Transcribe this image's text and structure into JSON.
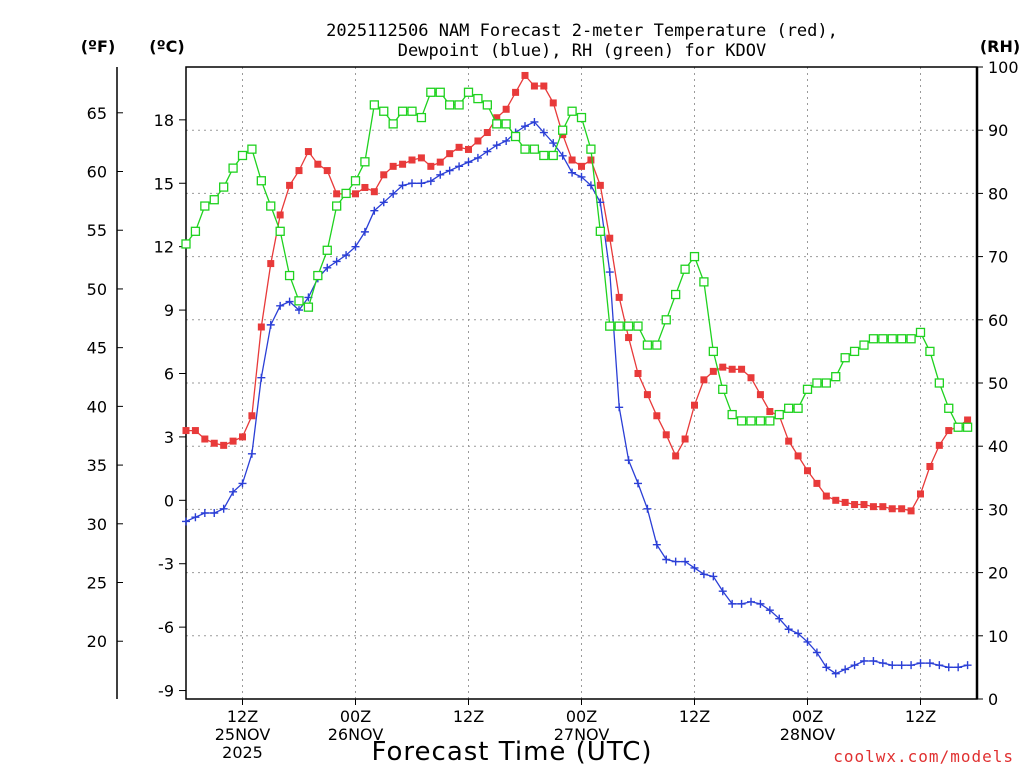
{
  "chart_data": {
    "type": "line",
    "title_line1": "2025112506 NAM Forecast 2-meter Temperature (red),",
    "title_line2": "Dewpoint (blue), RH (green) for KDOV",
    "xlabel": "Forecast Time (UTC)",
    "unit_f": "(ºF)",
    "unit_c": "(ºC)",
    "unit_rh": "(RH)",
    "watermark": "coolwx.com/models",
    "x_range_hours": [
      0,
      84
    ],
    "x_ticks": [
      {
        "h": 6,
        "l1": "12Z",
        "l2": "25NOV",
        "l3": "2025"
      },
      {
        "h": 18,
        "l1": "00Z",
        "l2": "26NOV",
        "l3": ""
      },
      {
        "h": 30,
        "l1": "12Z",
        "l2": "",
        "l3": ""
      },
      {
        "h": 42,
        "l1": "00Z",
        "l2": "27NOV",
        "l3": ""
      },
      {
        "h": 54,
        "l1": "12Z",
        "l2": "",
        "l3": ""
      },
      {
        "h": 66,
        "l1": "00Z",
        "l2": "28NOV",
        "l3": ""
      },
      {
        "h": 78,
        "l1": "12Z",
        "l2": "",
        "l3": ""
      }
    ],
    "c_range": [
      -9.4,
      20.5
    ],
    "c_ticks": [
      -9,
      -6,
      -3,
      0,
      3,
      6,
      9,
      12,
      15,
      18
    ],
    "f_ticks": [
      20,
      25,
      30,
      35,
      40,
      45,
      50,
      55,
      60,
      65
    ],
    "rh_range": [
      0,
      100
    ],
    "rh_ticks": [
      0,
      10,
      20,
      30,
      40,
      50,
      60,
      70,
      80,
      90,
      100
    ],
    "colors": {
      "temperature": "#e83a3a",
      "dewpoint": "#2b3fd6",
      "rh": "#1fd21f",
      "grid": "#9a9a9a"
    },
    "series": [
      {
        "key": "temperature",
        "marker": "filled-square",
        "values": [
          3.3,
          3.3,
          2.9,
          2.7,
          2.6,
          2.8,
          3.0,
          4.0,
          8.2,
          11.2,
          13.5,
          14.9,
          15.6,
          16.5,
          15.9,
          15.6,
          14.5,
          14.5,
          14.5,
          14.8,
          14.6,
          15.4,
          15.8,
          15.9,
          16.1,
          16.2,
          15.8,
          16.0,
          16.4,
          16.7,
          16.6,
          17.0,
          17.4,
          18.1,
          18.5,
          19.3,
          20.1,
          19.6,
          19.6,
          18.8,
          17.3,
          16.1,
          15.8,
          16.1,
          14.9,
          12.4,
          9.6,
          7.7,
          6.0,
          5.0,
          4.0,
          3.1,
          2.1,
          2.9,
          4.5,
          5.7,
          6.1,
          6.3,
          6.2,
          6.2,
          5.8,
          5.0,
          4.2,
          4.0,
          2.8,
          2.1,
          1.4,
          0.8,
          0.2,
          0.0,
          -0.1,
          -0.2,
          -0.2,
          -0.3,
          -0.3,
          -0.4,
          -0.4,
          -0.5,
          0.3,
          1.6,
          2.6,
          3.3,
          3.5,
          3.8
        ]
      },
      {
        "key": "dewpoint",
        "marker": "plus",
        "values": [
          -1.0,
          -0.8,
          -0.6,
          -0.6,
          -0.4,
          0.4,
          0.8,
          2.2,
          5.8,
          8.3,
          9.2,
          9.4,
          9.0,
          9.6,
          10.5,
          11.0,
          11.3,
          11.6,
          12.0,
          12.7,
          13.7,
          14.1,
          14.5,
          14.9,
          15.0,
          15.0,
          15.1,
          15.4,
          15.6,
          15.8,
          16.0,
          16.2,
          16.5,
          16.8,
          17.0,
          17.4,
          17.7,
          17.9,
          17.4,
          16.9,
          16.3,
          15.5,
          15.3,
          14.9,
          14.1,
          10.8,
          4.4,
          1.9,
          0.8,
          -0.4,
          -2.1,
          -2.8,
          -2.9,
          -2.9,
          -3.2,
          -3.5,
          -3.6,
          -4.3,
          -4.9,
          -4.9,
          -4.8,
          -4.9,
          -5.2,
          -5.6,
          -6.1,
          -6.3,
          -6.7,
          -7.2,
          -7.9,
          -8.2,
          -8.0,
          -7.8,
          -7.6,
          -7.6,
          -7.7,
          -7.8,
          -7.8,
          -7.8,
          -7.7,
          -7.7,
          -7.8,
          -7.9,
          -7.9,
          -7.8
        ]
      },
      {
        "key": "rh",
        "marker": "open-square",
        "values": [
          72,
          74,
          78,
          79,
          81,
          84,
          86,
          87,
          82,
          78,
          74,
          67,
          63,
          62,
          67,
          71,
          78,
          80,
          82,
          85,
          94,
          93,
          91,
          93,
          93,
          92,
          96,
          96,
          94,
          94,
          96,
          95,
          94,
          91,
          91,
          89,
          87,
          87,
          86,
          86,
          90,
          93,
          92,
          87,
          74,
          59,
          59,
          59,
          59,
          56,
          56,
          60,
          64,
          68,
          70,
          66,
          55,
          49,
          45,
          44,
          44,
          44,
          44,
          45,
          46,
          46,
          49,
          50,
          50,
          51,
          54,
          55,
          56,
          57,
          57,
          57,
          57,
          57,
          58,
          55,
          50,
          46,
          43,
          43
        ]
      }
    ]
  }
}
